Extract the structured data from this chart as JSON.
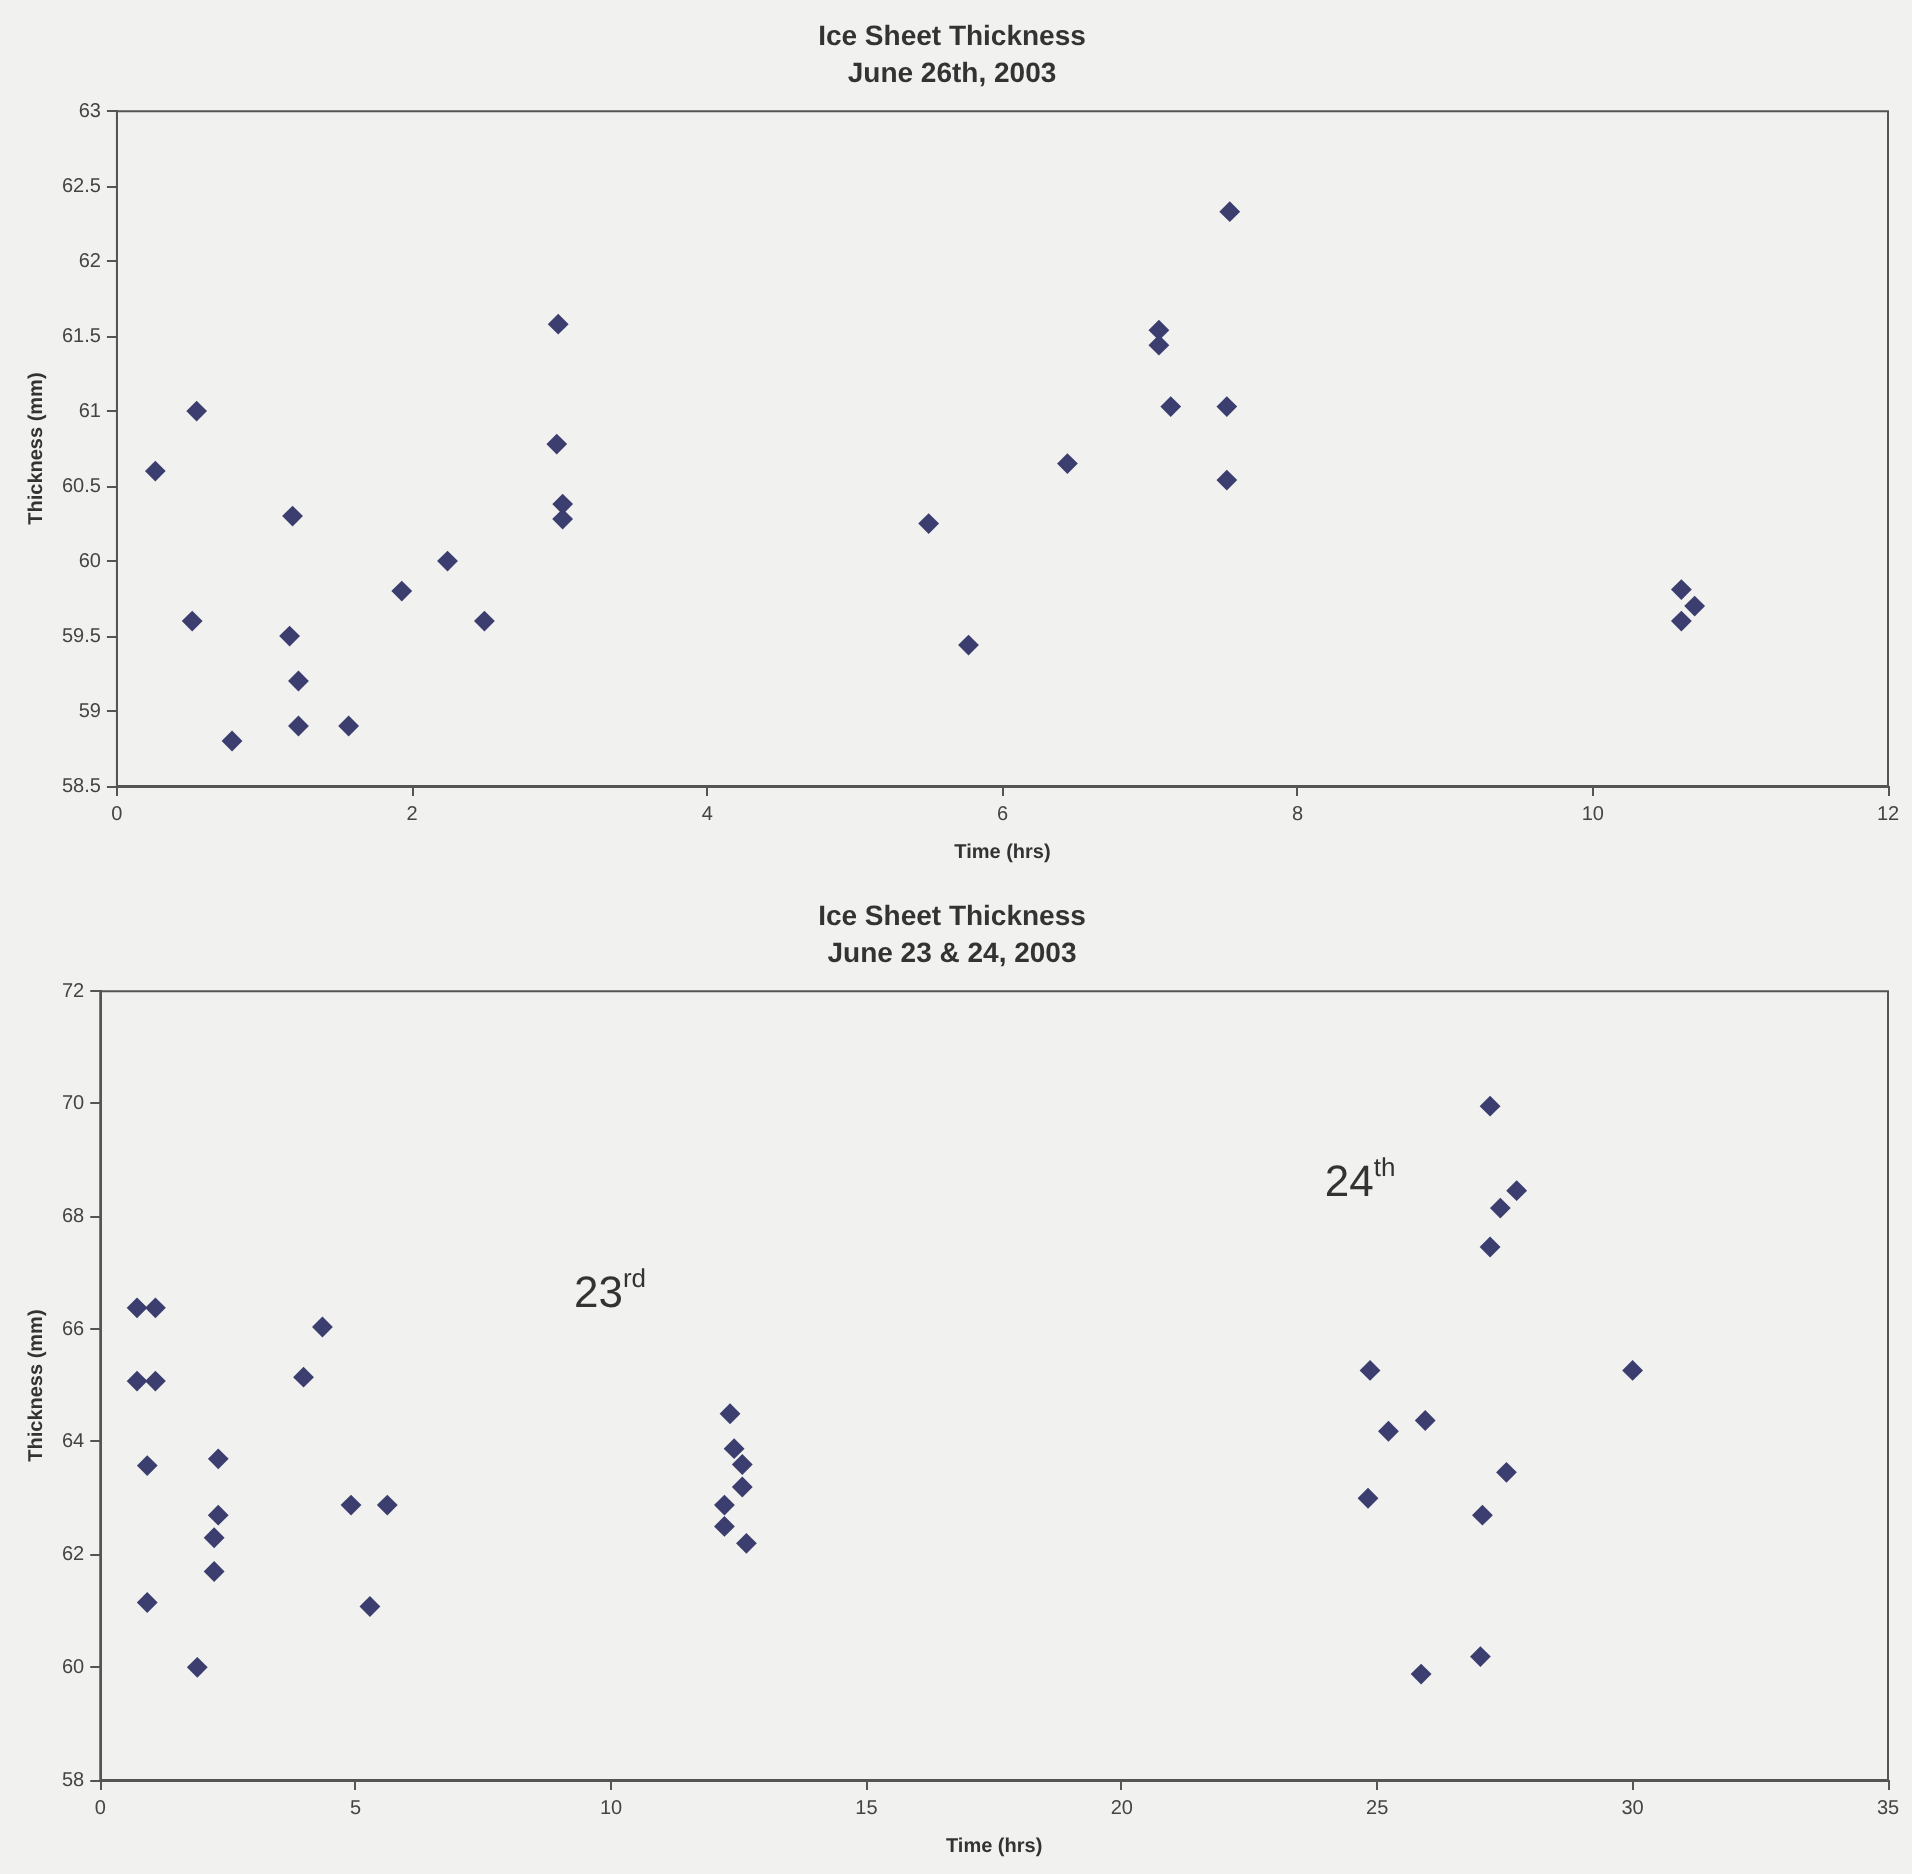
{
  "chart_data": [
    {
      "type": "scatter",
      "title": "Ice Sheet Thickness",
      "subtitle": "June 26th, 2003",
      "xlabel": "Time (hrs)",
      "ylabel": "Thickness (mm)",
      "marker": "diamond",
      "grid": false,
      "legend": false,
      "xlim": [
        0,
        12
      ],
      "xticks": [
        0,
        2,
        4,
        6,
        8,
        10,
        12
      ],
      "ylim": [
        58.5,
        63
      ],
      "yticks": [
        58.5,
        59,
        59.5,
        60,
        60.5,
        61,
        61.5,
        62,
        62.5,
        63
      ],
      "series": [
        {
          "color": "#3b3e6e",
          "x": [
            0.26,
            0.54,
            0.51,
            0.78,
            1.19,
            1.17,
            1.23,
            1.23,
            1.57,
            1.93,
            2.24,
            2.49,
            2.99,
            2.98,
            3.02,
            3.02,
            5.5,
            5.77,
            6.44,
            7.06,
            7.06,
            7.14,
            7.52,
            7.54,
            7.52,
            10.6,
            10.69,
            10.6
          ],
          "values": [
            60.6,
            61.0,
            59.6,
            58.8,
            60.3,
            59.5,
            59.2,
            58.9,
            58.9,
            59.8,
            60.0,
            59.6,
            61.58,
            60.78,
            60.38,
            60.28,
            60.25,
            59.44,
            60.65,
            61.54,
            61.44,
            61.03,
            61.03,
            62.33,
            60.54,
            59.81,
            59.7,
            59.6
          ]
        }
      ]
    },
    {
      "type": "scatter",
      "title": "Ice Sheet Thickness",
      "subtitle": "June 23 & 24, 2003",
      "xlabel": "Time (hrs)",
      "ylabel": "Thickness (mm)",
      "marker": "diamond",
      "grid": false,
      "legend": false,
      "xlim": [
        0,
        35
      ],
      "xticks": [
        0,
        5,
        10,
        15,
        20,
        25,
        30,
        35
      ],
      "ylim": [
        58,
        72
      ],
      "yticks": [
        58,
        60,
        62,
        64,
        66,
        68,
        70,
        72
      ],
      "annotations": [
        "23$^{rd}$",
        "24$^{th}$"
      ],
      "series": [
        {
          "color": "#3b3e6e",
          "x": [
            0.72,
            1.08,
            0.72,
            1.08,
            0.92,
            0.92,
            1.9,
            2.31,
            2.31,
            2.23,
            2.23,
            3.98,
            4.35,
            4.91,
            5.62,
            5.28,
            12.33,
            12.41,
            12.57,
            12.57,
            12.22,
            12.22,
            12.65,
            27.21,
            27.73,
            27.41,
            27.21,
            24.86,
            30.0,
            25.22,
            25.94,
            27.53,
            24.82,
            27.06,
            27.02,
            25.86
          ],
          "values": [
            66.38,
            66.38,
            65.08,
            65.08,
            63.58,
            61.15,
            60.0,
            63.7,
            62.7,
            62.3,
            61.7,
            65.15,
            66.04,
            62.88,
            62.88,
            61.08,
            64.5,
            63.88,
            63.6,
            63.2,
            62.88,
            62.5,
            62.2,
            69.96,
            68.46,
            68.15,
            67.46,
            65.27,
            65.27,
            64.19,
            64.38,
            63.46,
            63.0,
            62.7,
            60.19,
            59.88
          ]
        }
      ]
    }
  ]
}
